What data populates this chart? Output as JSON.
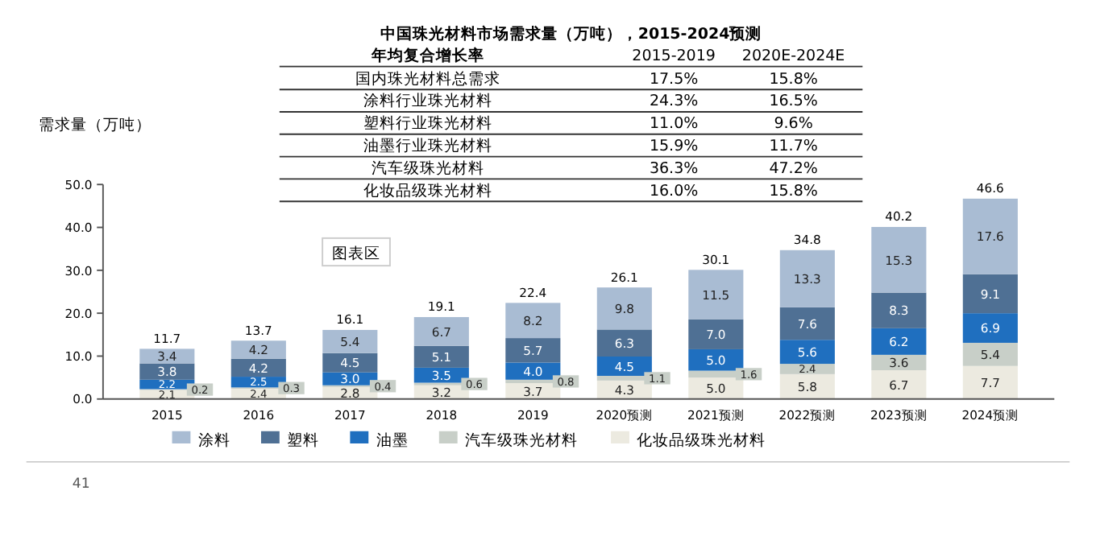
{
  "chart_data": [
    {
      "type": "other",
      "title": "中国珠光材料市场需求量（万吨），2015-2024预测",
      "categories": [
        "年均复合增长率",
        "2015-2019",
        "2020E-2024E"
      ],
      "y_categories": [
        "国内珠光材料总需求",
        "涂料行业珠光材料",
        "塑料行业珠光材料",
        "油墨行业珠光材料",
        "汽车级珠光材料",
        "化妆品级珠光材料"
      ],
      "cell_labels": [
        [
          "17.5%",
          "15.8%"
        ],
        [
          "24.3%",
          "16.5%"
        ],
        [
          "11.0%",
          "9.6%"
        ],
        [
          "15.9%",
          "11.7%"
        ],
        [
          "36.3%",
          "47.2%"
        ],
        [
          "16.0%",
          "15.8%"
        ]
      ]
    },
    {
      "type": "bar",
      "stacked": true,
      "ylabel": "需求量（万吨）",
      "categories": [
        "2015",
        "2016",
        "2017",
        "2018",
        "2019",
        "2020预测",
        "2021预测",
        "2022预测",
        "2023预测",
        "2024预测"
      ],
      "series": [
        {
          "name": "化妆品级珠光材料",
          "color": "#eceae0",
          "values": [
            2.1,
            2.4,
            2.8,
            3.2,
            3.7,
            4.3,
            5.0,
            5.8,
            6.7,
            7.7
          ],
          "value_labels": [
            "2.1",
            "2.4",
            "2.8",
            "3.2",
            "3.7",
            "4.3",
            "5.0",
            "5.8",
            "6.7",
            "7.7"
          ]
        },
        {
          "name": "汽车级珠光材料",
          "color": "#c8cfc8",
          "values": [
            0.2,
            0.3,
            0.4,
            0.6,
            0.8,
            1.1,
            1.6,
            2.4,
            3.6,
            5.4
          ],
          "value_labels": [
            "0.2",
            "0.3",
            "0.4",
            "0.6",
            "0.8",
            "1.1",
            "1.6",
            "2.4",
            "3.6",
            "5.4"
          ]
        },
        {
          "name": "油墨",
          "color": "#1f6fbf",
          "values": [
            2.2,
            2.5,
            3.0,
            3.5,
            4.0,
            4.5,
            5.0,
            5.6,
            6.2,
            6.9
          ],
          "value_labels": [
            "2.2",
            "2.5",
            "3.0",
            "3.5",
            "4.0",
            "4.5",
            "5.0",
            "5.6",
            "6.2",
            "6.9"
          ]
        },
        {
          "name": "塑料",
          "color": "#4f7094",
          "values": [
            3.8,
            4.2,
            4.5,
            5.1,
            5.7,
            6.3,
            7.0,
            7.6,
            8.3,
            9.1
          ],
          "value_labels": [
            "3.8",
            "4.2",
            "4.5",
            "5.1",
            "5.7",
            "6.3",
            "7.0",
            "7.6",
            "8.3",
            "9.1"
          ]
        },
        {
          "name": "涂料",
          "color": "#a9bcd3",
          "values": [
            3.4,
            4.2,
            5.4,
            6.7,
            8.2,
            9.8,
            11.5,
            13.3,
            15.3,
            17.6
          ],
          "value_labels": [
            "3.4",
            "4.2",
            "5.4",
            "6.7",
            "8.2",
            "9.8",
            "11.5",
            "13.3",
            "15.3",
            "17.6"
          ]
        }
      ],
      "totals": [
        "11.7",
        "13.7",
        "16.1",
        "19.1",
        "22.4",
        "26.1",
        "30.1",
        "34.8",
        "40.2",
        "46.6"
      ],
      "ylim": [
        0,
        50
      ],
      "yticks": [
        {
          "value": 0,
          "label": "0.0"
        },
        {
          "value": 10,
          "label": "10.0"
        },
        {
          "value": 20,
          "label": "20.0"
        },
        {
          "value": 30,
          "label": "30.0"
        },
        {
          "value": 40,
          "label": "40.0"
        },
        {
          "value": 50,
          "label": "50.0"
        }
      ],
      "legend": "bottom",
      "annotations": [
        "图表区",
        "41"
      ]
    }
  ]
}
